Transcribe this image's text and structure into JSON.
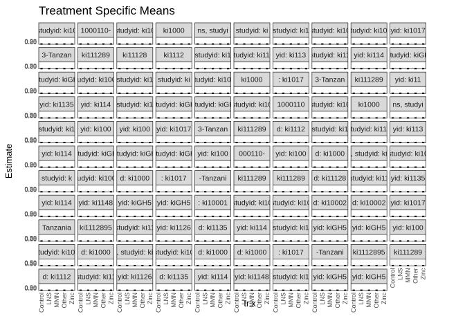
{
  "chart_data": {
    "type": "scatter",
    "title": "Treatment Specific Means",
    "xlabel": "tr.x",
    "ylabel": "Estimate",
    "x_categories": [
      "Control",
      "LNS",
      "MMN",
      "Other",
      "Zinc"
    ],
    "y_tick_labels": [
      "0.00",
      "0.25",
      "0.50"
    ],
    "ylim": [
      0,
      0.55
    ],
    "facet_strips": [
      "studyid: ki10",
      "1000110-",
      "studyid: ki10",
      "ki1000",
      "ns, studyi",
      "studyid: ki",
      "studyid: ki1",
      ", studyid: ki100",
      "studyid: ki100",
      "yid: ki1017",
      "3-Tanzan",
      "ki111289",
      "ki11128",
      "ki1112",
      "studyid: ki1",
      "studyid: ki112",
      "yid: ki113",
      "studyid: ki11",
      "yid: ki114",
      "studyid: kiGH",
      "studyid: kiGH",
      "studyid: ki1000",
      "studyid: ki1",
      "studyid: ki",
      "studyid: ki100",
      "ki1000",
      ": ki1017",
      "3-Tanzan",
      "ki111289",
      "yid: ki11",
      "yid: ki1135",
      "yid: ki114",
      "studyid: ki1",
      "studyid: kiGH",
      "studyid: kiGH",
      "studyid: ki10",
      "1000110",
      "studyid: ki10",
      "ki1000",
      "ns, studyi",
      "studyid: ki1",
      "yid: ki100",
      "yid: ki100",
      "yid: ki1017",
      "3-Tanzan",
      "ki111289",
      "d: ki1112",
      "studyid: ki1",
      "studyid: ki112",
      "yid: ki113",
      "yid: ki114",
      "studyid: kiGH",
      "studyid: kiGH",
      "studyid: kiGH",
      "yid: ki100",
      "000110-",
      "yid: ki100",
      "d: ki1000",
      ", studyid: ki",
      "studyid: ki10",
      "studyid: k",
      "studyid: ki1000",
      "d: ki1000",
      ": ki1017",
      "-Tanzani",
      "ki111289",
      "ki111289",
      "d: ki11128",
      "studyid: ki11",
      "yid: ki1135",
      "yid: ki114",
      "yid: ki1148",
      "yid: kiGH5",
      "yid: kiGH5",
      ": ki10001",
      "studyid: ki10",
      "studyid: ki10",
      "d: ki10002",
      "d: ki10002",
      "yid: ki1017",
      "Tanzania",
      "ki1112895",
      "studyid: ki11",
      "yid: ki1126",
      "d: ki1135",
      "yid: ki114",
      "studyid: ki1",
      "yid: kiGH5",
      "yid: kiGH5",
      "yid: ki100",
      "studyid: ki100",
      "d: ki1000",
      ", studyid: ki",
      "studyid: ki10",
      "d: ki1000",
      "d: ki1000",
      ": ki1017",
      "-Tanzani",
      "ki1112895",
      "ki111289",
      "d: ki1112",
      "studyid: ki11",
      "yid: ki1126",
      "d: ki1135",
      "yid: ki114",
      "yid: ki1148",
      "studyid: ki1",
      "yid: kiGH5",
      "yid: kiGH5"
    ],
    "grid": false,
    "legend": "none"
  }
}
